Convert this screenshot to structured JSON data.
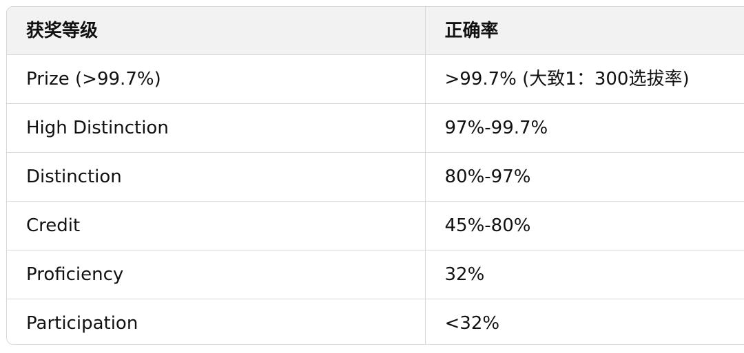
{
  "table": {
    "headers": [
      "获奖等级",
      "正确率"
    ],
    "rows": [
      [
        "Prize (>99.7%)",
        ">99.7% (大致1：300选拔率)"
      ],
      [
        "High Distinction",
        "97%-99.7%"
      ],
      [
        "Distinction",
        "80%-97%"
      ],
      [
        "Credit",
        "45%-80%"
      ],
      [
        "Proficiency",
        "32%"
      ],
      [
        "Participation",
        "<32%"
      ]
    ]
  }
}
